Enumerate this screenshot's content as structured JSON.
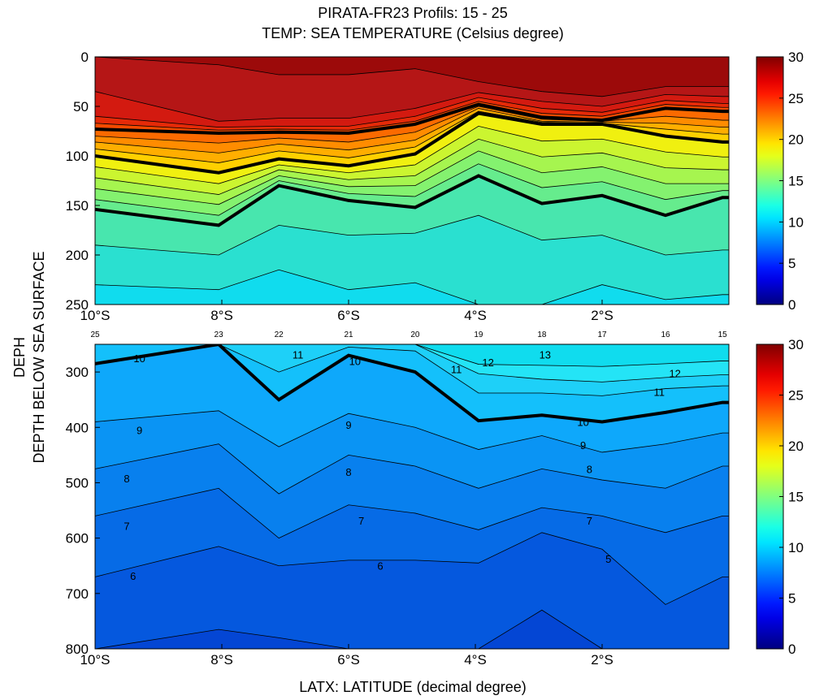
{
  "figure": {
    "title_line1": "PIRATA-FR23  Profils: 15 - 25",
    "title_line2": "TEMP: SEA TEMPERATURE (Celsius degree)",
    "ylabel_line1": "DEPH",
    "ylabel_line2": "DEPTH BELOW SEA SURFACE",
    "xlabel": "LATX: LATITUDE (decimal degree)"
  },
  "chart_data": [
    {
      "type": "heatmap",
      "panel": "top",
      "colormap": "jet",
      "x_ticks": [
        {
          "value": -10,
          "label": "10°S"
        },
        {
          "value": -8,
          "label": "8°S"
        },
        {
          "value": -6,
          "label": "6°S"
        },
        {
          "value": -4,
          "label": "4°S"
        },
        {
          "value": -2,
          "label": "2°S"
        }
      ],
      "y_ticks": [
        0,
        50,
        100,
        150,
        200,
        250
      ],
      "xlim": [
        -10,
        0
      ],
      "ylim": [
        0,
        250
      ],
      "profile_labels": [
        "25",
        "23",
        "22",
        "21",
        "20",
        "19",
        "18",
        "17",
        "16",
        "15"
      ],
      "profile_lats": [
        -10,
        -8.05,
        -7.1,
        -6.0,
        -4.95,
        -3.95,
        -2.95,
        -2.0,
        -1.0,
        -0.1
      ],
      "thick_isotherms": [
        {
          "level": 25,
          "depth": [
            73,
            77,
            76,
            77,
            68,
            48,
            61,
            64,
            52,
            55
          ]
        },
        {
          "level": 20,
          "depth": [
            100,
            117,
            103,
            110,
            98,
            57,
            68,
            68,
            80,
            86
          ]
        },
        {
          "level": 15,
          "depth": [
            154,
            170,
            130,
            145,
            152,
            120,
            148,
            140,
            160,
            142
          ]
        }
      ],
      "bands": [
        {
          "level": 29,
          "color": "#9c0a0a",
          "depth": [
            0,
            0,
            0,
            0,
            0,
            0,
            0,
            0,
            0,
            0
          ]
        },
        {
          "level": 28,
          "color": "#b51616",
          "depth": [
            0,
            8,
            18,
            18,
            12,
            25,
            35,
            40,
            30,
            30
          ]
        },
        {
          "level": 27,
          "color": "#d31a10",
          "depth": [
            35,
            65,
            62,
            62,
            52,
            36,
            45,
            50,
            38,
            40
          ]
        },
        {
          "level": 26,
          "color": "#e52a08",
          "depth": [
            60,
            71,
            70,
            70,
            60,
            41,
            52,
            56,
            44,
            47
          ]
        },
        {
          "level": 25,
          "color": "#f34a00",
          "depth": [
            67,
            74,
            73,
            74,
            65,
            45,
            57,
            60,
            48,
            51
          ]
        },
        {
          "level": 24,
          "color": "#fb6a00",
          "depth": [
            73,
            77,
            76,
            77,
            68,
            48,
            61,
            64,
            52,
            55
          ]
        },
        {
          "level": 23,
          "color": "#ff8c00",
          "depth": [
            80,
            87,
            82,
            86,
            76,
            50,
            63,
            65,
            60,
            64
          ]
        },
        {
          "level": 22,
          "color": "#ffae00",
          "depth": [
            86,
            97,
            88,
            94,
            84,
            52,
            65,
            66,
            67,
            71
          ]
        },
        {
          "level": 21,
          "color": "#ffd000",
          "depth": [
            93,
            107,
            95,
            102,
            91,
            55,
            66,
            67,
            73,
            78
          ]
        },
        {
          "level": 20,
          "color": "#f0f010",
          "depth": [
            100,
            117,
            103,
            110,
            98,
            57,
            68,
            68,
            80,
            86
          ]
        },
        {
          "level": 19,
          "color": "#cbf530",
          "depth": [
            111,
            128,
            109,
            117,
            109,
            70,
            85,
            83,
            96,
            101
          ]
        },
        {
          "level": 18,
          "color": "#a6f54f",
          "depth": [
            122,
            139,
            114,
            124,
            120,
            83,
            101,
            97,
            112,
            114
          ]
        },
        {
          "level": 17,
          "color": "#84f26f",
          "depth": [
            133,
            149,
            120,
            131,
            130,
            95,
            117,
            111,
            128,
            128
          ]
        },
        {
          "level": 16,
          "color": "#66ec8d",
          "depth": [
            144,
            160,
            125,
            138,
            141,
            108,
            132,
            126,
            144,
            135
          ]
        },
        {
          "level": 15,
          "color": "#48e6ae",
          "depth": [
            154,
            170,
            130,
            145,
            152,
            120,
            148,
            140,
            160,
            142
          ]
        },
        {
          "level": 14,
          "color": "#2ae0d0",
          "depth": [
            190,
            200,
            170,
            180,
            178,
            160,
            185,
            180,
            200,
            195
          ]
        },
        {
          "level": 13,
          "color": "#10dcee",
          "depth": [
            230,
            235,
            215,
            235,
            228,
            250,
            250,
            230,
            245,
            240
          ]
        }
      ]
    },
    {
      "type": "heatmap",
      "panel": "bottom",
      "colormap": "jet",
      "x_ticks": [
        {
          "value": -10,
          "label": "10°S"
        },
        {
          "value": -8,
          "label": "8°S"
        },
        {
          "value": -6,
          "label": "6°S"
        },
        {
          "value": -4,
          "label": "4°S"
        },
        {
          "value": -2,
          "label": "2°S"
        }
      ],
      "y_ticks": [
        300,
        400,
        500,
        600,
        700,
        800
      ],
      "xlim": [
        -10,
        0
      ],
      "ylim": [
        250,
        800
      ],
      "profile_lats": [
        -10,
        -8.05,
        -7.1,
        -6.0,
        -4.95,
        -3.95,
        -2.95,
        -2.0,
        -1.0,
        -0.1
      ],
      "thick_isotherms": [
        {
          "level": 10,
          "depth": [
            285,
            250,
            350,
            270,
            300,
            388,
            378,
            390,
            373,
            355
          ]
        }
      ],
      "contour_labels": [
        {
          "text": "10",
          "lat": -9.3,
          "depth": 275
        },
        {
          "text": "11",
          "lat": -6.8,
          "depth": 268
        },
        {
          "text": "10",
          "lat": -5.9,
          "depth": 280
        },
        {
          "text": "11",
          "lat": -4.3,
          "depth": 295
        },
        {
          "text": "12",
          "lat": -3.8,
          "depth": 282
        },
        {
          "text": "13",
          "lat": -2.9,
          "depth": 268
        },
        {
          "text": "12",
          "lat": -0.85,
          "depth": 302
        },
        {
          "text": "11",
          "lat": -1.1,
          "depth": 336
        },
        {
          "text": "10",
          "lat": -2.3,
          "depth": 390
        },
        {
          "text": "9",
          "lat": -9.3,
          "depth": 405
        },
        {
          "text": "9",
          "lat": -6.0,
          "depth": 395
        },
        {
          "text": "9",
          "lat": -2.3,
          "depth": 432
        },
        {
          "text": "8",
          "lat": -9.5,
          "depth": 492
        },
        {
          "text": "8",
          "lat": -6.0,
          "depth": 480
        },
        {
          "text": "8",
          "lat": -2.2,
          "depth": 475
        },
        {
          "text": "7",
          "lat": -9.5,
          "depth": 578
        },
        {
          "text": "7",
          "lat": -5.8,
          "depth": 568
        },
        {
          "text": "7",
          "lat": -2.2,
          "depth": 568
        },
        {
          "text": "6",
          "lat": -9.4,
          "depth": 668
        },
        {
          "text": "6",
          "lat": -5.5,
          "depth": 650
        },
        {
          "text": "5",
          "lat": -1.9,
          "depth": 637
        }
      ],
      "bands": [
        {
          "level": 13,
          "color": "#10dcee",
          "depth": [
            250,
            250,
            250,
            250,
            250,
            250,
            250,
            250,
            250,
            250
          ]
        },
        {
          "level": 12,
          "color": "#24e4f6",
          "depth": [
            250,
            250,
            250,
            250,
            250,
            286,
            288,
            290,
            285,
            280
          ]
        },
        {
          "level": 11,
          "color": "#1ed0f8",
          "depth": [
            250,
            250,
            250,
            250,
            250,
            303,
            313,
            318,
            310,
            305
          ]
        },
        {
          "level": 10,
          "color": "#14c0fb",
          "depth": [
            250,
            250,
            300,
            255,
            262,
            338,
            338,
            343,
            330,
            325
          ]
        },
        {
          "level": 9,
          "color": "#0ea8fb",
          "depth": [
            285,
            250,
            350,
            270,
            300,
            388,
            378,
            390,
            373,
            355
          ]
        },
        {
          "level": 8,
          "color": "#0a94f4",
          "depth": [
            390,
            370,
            435,
            375,
            400,
            440,
            415,
            445,
            430,
            410
          ]
        },
        {
          "level": 7,
          "color": "#0880ee",
          "depth": [
            475,
            430,
            520,
            450,
            470,
            510,
            475,
            495,
            510,
            470
          ]
        },
        {
          "level": 6,
          "color": "#066be6",
          "depth": [
            560,
            510,
            600,
            540,
            555,
            585,
            545,
            560,
            590,
            560
          ]
        },
        {
          "level": 5,
          "color": "#0558de",
          "depth": [
            670,
            615,
            650,
            640,
            640,
            645,
            590,
            620,
            720,
            670
          ]
        },
        {
          "level": 4,
          "color": "#0446d4",
          "depth": [
            800,
            765,
            780,
            800,
            800,
            800,
            730,
            800,
            800,
            800
          ]
        }
      ]
    }
  ],
  "colorbar": {
    "min": 0,
    "max": 30,
    "ticks": [
      "0",
      "5",
      "10",
      "15",
      "20",
      "25",
      "30"
    ]
  }
}
